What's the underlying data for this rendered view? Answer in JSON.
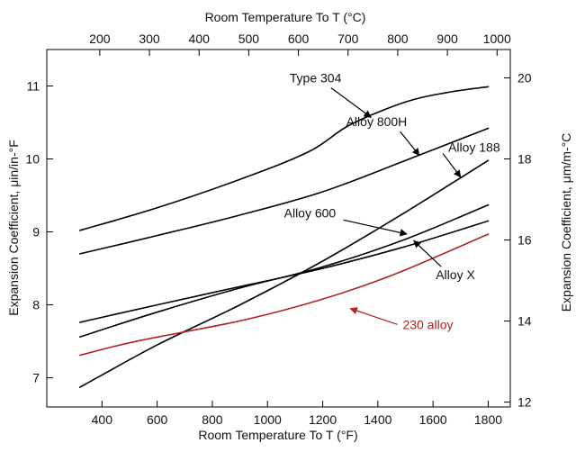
{
  "chart_data": {
    "type": "line",
    "xlabel_bottom": "Room Temperature To T (°F)",
    "xlabel_top": "Room Temperature To T (°C)",
    "ylabel_left": "Expansion Coefficient, μin/in-°F",
    "ylabel_right": "Expansion Coefficient, μm/m-°C",
    "xlim": [
      200,
      1880
    ],
    "ylim": [
      6.6,
      11.5
    ],
    "x_ticks": [
      400,
      600,
      800,
      1000,
      1200,
      1400,
      1600,
      1800
    ],
    "x_tick_labels": [
      "400",
      "600",
      "800",
      "1000",
      "1200",
      "1400",
      "1600",
      "1800"
    ],
    "y_ticks": [
      7,
      8,
      9,
      10,
      11
    ],
    "y_tick_labels": [
      "7",
      "8",
      "9",
      "10",
      "11"
    ],
    "top_ticks_celsius": [
      200,
      300,
      400,
      500,
      600,
      700,
      800,
      900,
      1000
    ],
    "top_tick_labels": [
      "200",
      "300",
      "400",
      "500",
      "600",
      "700",
      "800",
      "900",
      "1000"
    ],
    "right_ticks_metric": [
      12,
      14,
      16,
      18,
      20
    ],
    "right_tick_labels": [
      "12",
      "14",
      "16",
      "18",
      "20"
    ],
    "grid": false,
    "series": [
      {
        "name": "Type 304",
        "color": "#000000",
        "x": [
          320,
          600,
          900,
          1150,
          1300,
          1500,
          1650,
          1800
        ],
        "y": [
          9.02,
          9.33,
          9.72,
          10.1,
          10.47,
          10.78,
          10.91,
          10.99
        ]
      },
      {
        "name": "Alloy 800H",
        "color": "#000000",
        "x": [
          320,
          600,
          900,
          1200,
          1500,
          1800
        ],
        "y": [
          8.7,
          8.95,
          9.23,
          9.55,
          9.98,
          10.42
        ]
      },
      {
        "name": "Alloy 188",
        "color": "#000000",
        "x": [
          320,
          600,
          900,
          1200,
          1500,
          1800
        ],
        "y": [
          6.87,
          7.45,
          8.0,
          8.6,
          9.27,
          9.98
        ]
      },
      {
        "name": "Alloy 600",
        "color": "#000000",
        "x": [
          320,
          600,
          900,
          1200,
          1500,
          1800
        ],
        "y": [
          7.56,
          7.9,
          8.23,
          8.52,
          8.9,
          9.37
        ]
      },
      {
        "name": "Alloy X",
        "color": "#000000",
        "x": [
          320,
          600,
          900,
          1200,
          1500,
          1800
        ],
        "y": [
          7.76,
          8.0,
          8.25,
          8.5,
          8.8,
          9.15
        ]
      },
      {
        "name": "230 alloy",
        "color": "#b22222",
        "x": [
          320,
          500,
          700,
          900,
          1100,
          1300,
          1500,
          1800
        ],
        "y": [
          7.31,
          7.48,
          7.63,
          7.78,
          7.97,
          8.2,
          8.48,
          8.97
        ]
      }
    ],
    "annotations": [
      {
        "text": "Type 304",
        "series": "Type 304",
        "label_x": 1080,
        "label_y": 11.05,
        "arrow_x": 1375,
        "arrow_y": 10.57
      },
      {
        "text": "Alloy 800H",
        "series": "Alloy 800H",
        "label_x": 1285,
        "label_y": 10.45,
        "arrow_x": 1550,
        "arrow_y": 10.05
      },
      {
        "text": "Alloy 188",
        "series": "Alloy 188",
        "label_x": 1655,
        "label_y": 10.1,
        "arrow_x": 1700,
        "arrow_y": 9.75
      },
      {
        "text": "Alloy 600",
        "series": "Alloy 600",
        "label_x": 1060,
        "label_y": 9.2,
        "arrow_x": 1505,
        "arrow_y": 8.97
      },
      {
        "text": "Alloy X",
        "series": "Alloy X",
        "label_x": 1610,
        "label_y": 8.35,
        "arrow_x": 1530,
        "arrow_y": 8.88
      },
      {
        "text": "230 alloy",
        "series": "230 alloy",
        "label_x": 1490,
        "label_y": 7.67,
        "arrow_x": 1300,
        "arrow_y": 7.95
      }
    ]
  }
}
